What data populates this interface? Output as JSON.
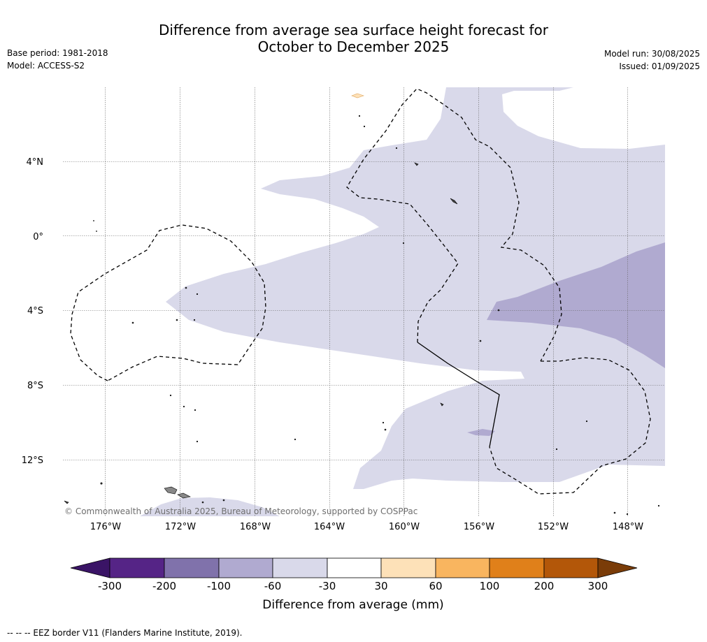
{
  "title": {
    "line1": "Difference from average sea surface height forecast for",
    "line2": "October to December 2025"
  },
  "meta_left": {
    "base_period": "Base period: 1981-2018",
    "model": "Model: ACCESS-S2"
  },
  "meta_right": {
    "model_run": "Model run: 30/08/2025",
    "issued": "Issued: 01/09/2025"
  },
  "map": {
    "lat_labels": [
      "4°N",
      "0°",
      "4°S",
      "8°S",
      "12°S"
    ],
    "lon_labels": [
      "176°W",
      "172°W",
      "168°W",
      "164°W",
      "160°W",
      "156°W",
      "152°W",
      "148°W"
    ],
    "copyright": "© Commonwealth of Australia 2025, Bureau of Meteorology, supported by COSPPac"
  },
  "colorbar": {
    "tick_labels": [
      "-300",
      "-200",
      "-100",
      "-60",
      "-30",
      "30",
      "60",
      "100",
      "200",
      "300"
    ],
    "colors": [
      "#3a1466",
      "#552486",
      "#8072ab",
      "#b0aad0",
      "#d9d9ea",
      "#ffffff",
      "#fde1b8",
      "#f9b55f",
      "#e0801a",
      "#b35709",
      "#7a3c08"
    ],
    "label": "Difference from average (mm)"
  },
  "footer": "--  --  -- EEZ border V11 (Flanders Marine Institute, 2019)."
}
